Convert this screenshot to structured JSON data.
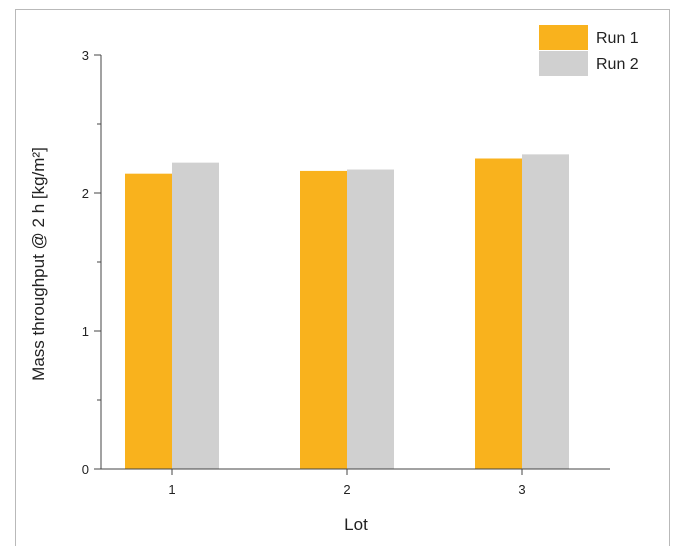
{
  "chart_data": {
    "type": "bar",
    "title": "",
    "xlabel": "Lot",
    "ylabel": "Mass throughput @ 2 h [kg/m²]",
    "categories": [
      "1",
      "2",
      "3"
    ],
    "yticks": [
      "0",
      "1",
      "2",
      "3"
    ],
    "ylim": [
      0,
      3
    ],
    "grid": false,
    "legend_position": "top-right",
    "series": [
      {
        "name": "Run 1",
        "color": "#f9b21d",
        "values": [
          2.14,
          2.16,
          2.25
        ]
      },
      {
        "name": "Run 2",
        "color": "#d0d0d0",
        "values": [
          2.22,
          2.17,
          2.28
        ]
      }
    ]
  }
}
